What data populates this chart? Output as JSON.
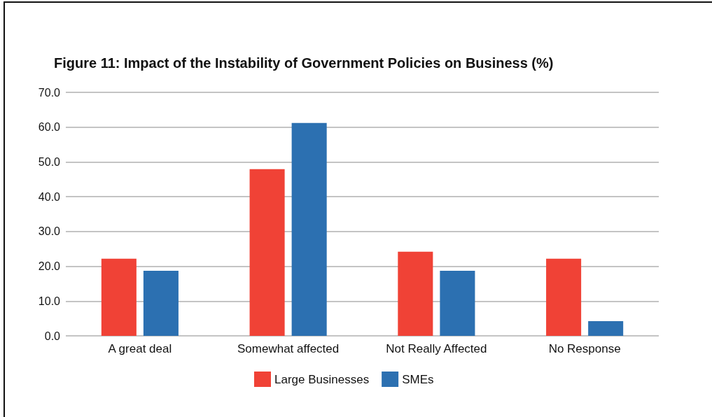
{
  "chart_data": {
    "type": "bar",
    "title": "Figure 11: Impact of the Instability of Government Policies on Business (%)",
    "categories": [
      "A great deal",
      "Somewhat affected",
      "Not Really Affected",
      "No Response"
    ],
    "series": [
      {
        "name": "Large Businesses",
        "color": "#f04236",
        "values": [
          22.2,
          47.9,
          24.2,
          22.2
        ]
      },
      {
        "name": "SMEs",
        "color": "#2c70b1",
        "values": [
          18.7,
          61.2,
          18.7,
          4.2
        ]
      }
    ],
    "ylim": [
      0,
      70
    ],
    "yticks": [
      {
        "value": 0,
        "label": "0.0"
      },
      {
        "value": 10,
        "label": "10.0"
      },
      {
        "value": 20,
        "label": "20.0"
      },
      {
        "value": 30,
        "label": "30.0"
      },
      {
        "value": 40,
        "label": "40.0"
      },
      {
        "value": 50,
        "label": "50.0"
      },
      {
        "value": 60,
        "label": "60.0"
      },
      {
        "value": 70,
        "label": "70.0"
      }
    ],
    "grid": "y",
    "legend": "bottom"
  }
}
